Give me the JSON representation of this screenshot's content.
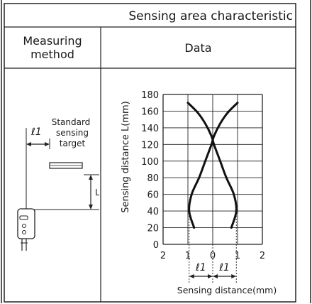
{
  "table": {
    "title": "Sensing area characteristic",
    "col_method": "Measuring method",
    "col_data": "Data"
  },
  "diagram": {
    "target_label_1": "Standard",
    "target_label_2": "sensing",
    "target_label_3": "target",
    "l1_label": "ℓ1",
    "L_label": "L"
  },
  "chart_data": {
    "type": "line",
    "xlabel": "Sensing distance(mm)",
    "ylabel": "Sensing distance L(mm)",
    "xlim": [
      -2,
      2
    ],
    "ylim": [
      0,
      180
    ],
    "x_tick_labels": [
      "2",
      "1",
      "0",
      "1",
      "2"
    ],
    "y_ticks": [
      0,
      20,
      40,
      60,
      80,
      100,
      120,
      140,
      160,
      180
    ],
    "grid": true,
    "series": [
      {
        "values": [
          {
            "x": -0.75,
            "y": 20
          },
          {
            "x": -0.95,
            "y": 40
          },
          {
            "x": -0.85,
            "y": 60
          },
          {
            "x": -0.55,
            "y": 80
          },
          {
            "x": -0.3,
            "y": 100
          },
          {
            "x": -0.05,
            "y": 120
          },
          {
            "x": 0.05,
            "y": 130
          },
          {
            "x": 0.3,
            "y": 145
          },
          {
            "x": 0.6,
            "y": 158
          },
          {
            "x": 1.0,
            "y": 170
          }
        ]
      },
      {
        "values": [
          {
            "x": 0.75,
            "y": 20
          },
          {
            "x": 0.95,
            "y": 40
          },
          {
            "x": 0.85,
            "y": 60
          },
          {
            "x": 0.55,
            "y": 80
          },
          {
            "x": 0.3,
            "y": 100
          },
          {
            "x": 0.05,
            "y": 120
          },
          {
            "x": -0.05,
            "y": 130
          },
          {
            "x": -0.3,
            "y": 145
          },
          {
            "x": -0.6,
            "y": 158
          },
          {
            "x": -1.0,
            "y": 170
          }
        ]
      }
    ],
    "annotations": [
      "ℓ1",
      "ℓ1"
    ]
  }
}
